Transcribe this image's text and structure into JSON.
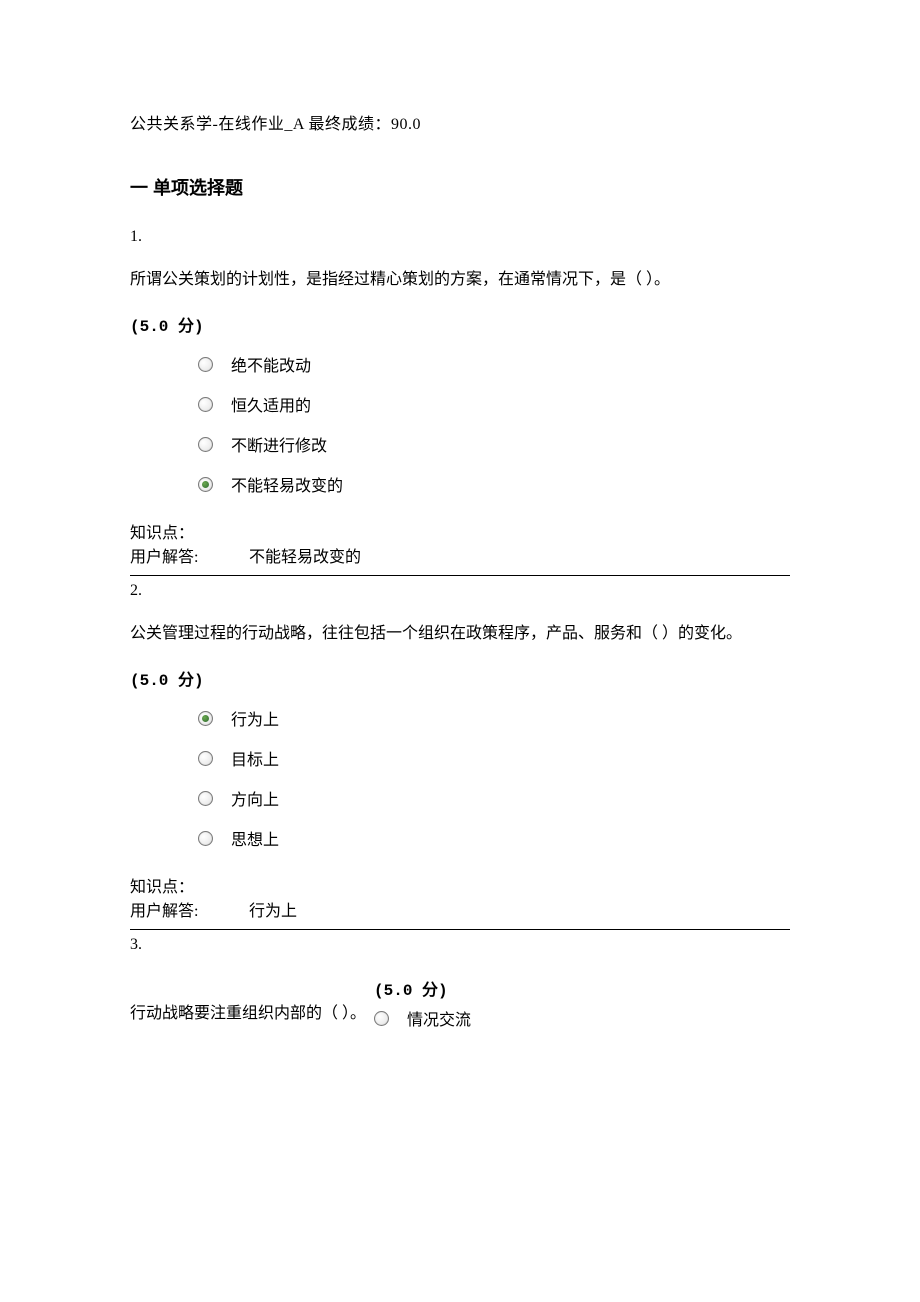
{
  "header": "公共关系学-在线作业_A 最终成绩：90.0",
  "section_title": "一 单项选择题",
  "questions": [
    {
      "number": "1.",
      "text": "所谓公关策划的计划性，是指经过精心策划的方案，在通常情况下，是（ ）。",
      "points": "(5.0 分)",
      "options": [
        "绝不能改动",
        "恒久适用的",
        "不断进行修改",
        "不能轻易改变的"
      ],
      "selected": 3,
      "kp_label": "知识点：",
      "ans_label": "用户解答:",
      "answer": "不能轻易改变的"
    },
    {
      "number": "2.",
      "text": "公关管理过程的行动战略，往往包括一个组织在政策程序，产品、服务和（ ）的变化。",
      "points": "(5.0 分)",
      "options": [
        "行为上",
        "目标上",
        "方向上",
        "思想上"
      ],
      "selected": 0,
      "kp_label": "知识点：",
      "ans_label": "用户解答:",
      "answer": "行为上"
    },
    {
      "number": "3.",
      "text_left": "行动战略要注重组织内部的（ ）。",
      "points": "(5.0 分)",
      "options": [
        "情况交流"
      ],
      "selected": -1
    }
  ]
}
